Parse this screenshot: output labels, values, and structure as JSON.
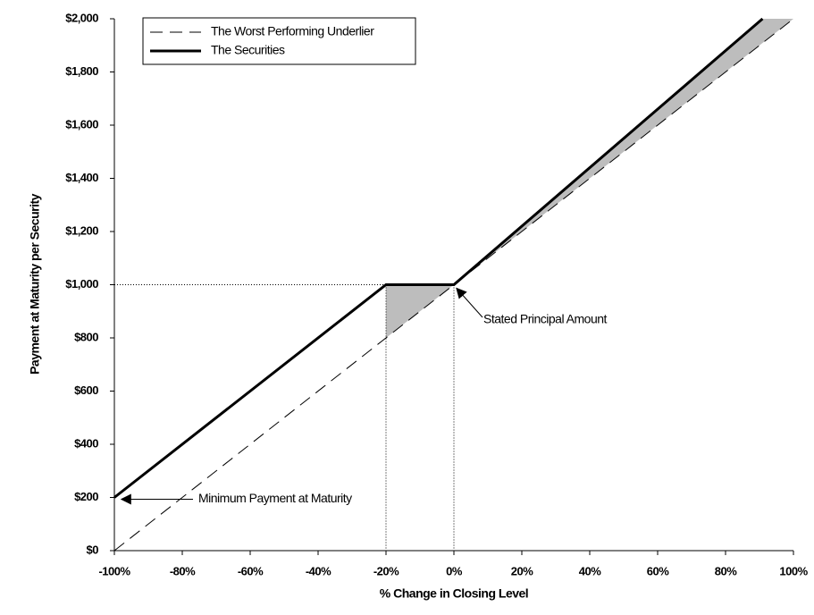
{
  "chart_data": {
    "type": "line",
    "x_label": "% Change in Closing Level",
    "y_label": "Payment at Maturity per Security",
    "xlim": [
      -100,
      100
    ],
    "xticks": [
      {
        "value": -100,
        "label": "-100%"
      },
      {
        "value": -80,
        "label": "-80%"
      },
      {
        "value": -60,
        "label": "-60%"
      },
      {
        "value": -40,
        "label": "-40%"
      },
      {
        "value": -20,
        "label": "-20%"
      },
      {
        "value": 0,
        "label": "0%"
      },
      {
        "value": 20,
        "label": "20%"
      },
      {
        "value": 40,
        "label": "40%"
      },
      {
        "value": 60,
        "label": "60%"
      },
      {
        "value": 80,
        "label": "80%"
      },
      {
        "value": 100,
        "label": "100%"
      }
    ],
    "ylim": [
      0,
      2000
    ],
    "yticks": [
      {
        "value": 0,
        "label": "$0"
      },
      {
        "value": 200,
        "label": "$200"
      },
      {
        "value": 400,
        "label": "$400"
      },
      {
        "value": 600,
        "label": "$600"
      },
      {
        "value": 800,
        "label": "$800"
      },
      {
        "value": 1000,
        "label": "$1,000"
      },
      {
        "value": 1200,
        "label": "$1,200"
      },
      {
        "value": 1400,
        "label": "$1,400"
      },
      {
        "value": 1600,
        "label": "$1,600"
      },
      {
        "value": 1800,
        "label": "$1,800"
      },
      {
        "value": 2000,
        "label": "$2,000"
      }
    ],
    "grid": false,
    "legend": "upper left",
    "series": [
      {
        "name": "The Worst Performing Underlier",
        "color": "#000000",
        "line_style": "dashed",
        "x": [
          -100,
          100
        ],
        "values": [
          0,
          2000
        ]
      },
      {
        "name": "The Securities",
        "color": "#000000",
        "line_style": "solid",
        "x": [
          -100,
          -20,
          0,
          90.9
        ],
        "values": [
          200,
          1000,
          1000,
          2000
        ]
      }
    ],
    "annotations": [
      {
        "text": "Stated Principal Amount"
      },
      {
        "text": "Minimum Payment at Maturity"
      }
    ]
  }
}
